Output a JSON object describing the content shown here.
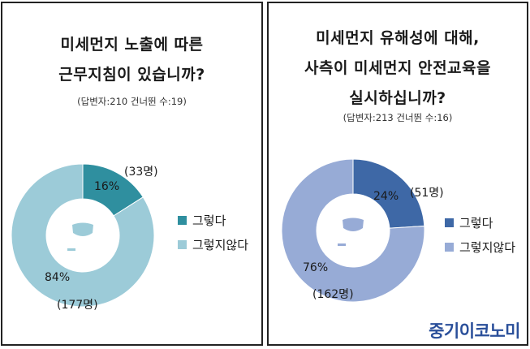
{
  "chart_data": [
    {
      "type": "pie",
      "title_lines": [
        "미세먼지 노출에 따른",
        "근무지침이 있습니까?"
      ],
      "meta": "(답변자:210   건너뛴 수:19)",
      "series": [
        {
          "name": "그렇다",
          "value": 16,
          "pct_label": "16%",
          "count_label": "(33명)",
          "color": "#2f8f9f"
        },
        {
          "name": "그렇지않다",
          "value": 84,
          "pct_label": "84%",
          "count_label": "(177명)",
          "color": "#9ccbd8"
        }
      ]
    },
    {
      "type": "pie",
      "title_lines": [
        "미세먼지 유해성에 대해,",
        "사측이 미세먼지 안전교육을",
        "실시하십니까?"
      ],
      "meta": "(답변자:213   건너뛴 수:16)",
      "series": [
        {
          "name": "그렇다",
          "value": 24,
          "pct_label": "24%",
          "count_label": "(51명)",
          "color": "#3e68a6"
        },
        {
          "name": "그렇지않다",
          "value": 76,
          "pct_label": "76%",
          "count_label": "(162명)",
          "color": "#97abd6"
        }
      ]
    }
  ],
  "brand": "중기이코노미",
  "icon": {
    "name": "worker-with-mask-icon",
    "color": "#ffffff"
  }
}
